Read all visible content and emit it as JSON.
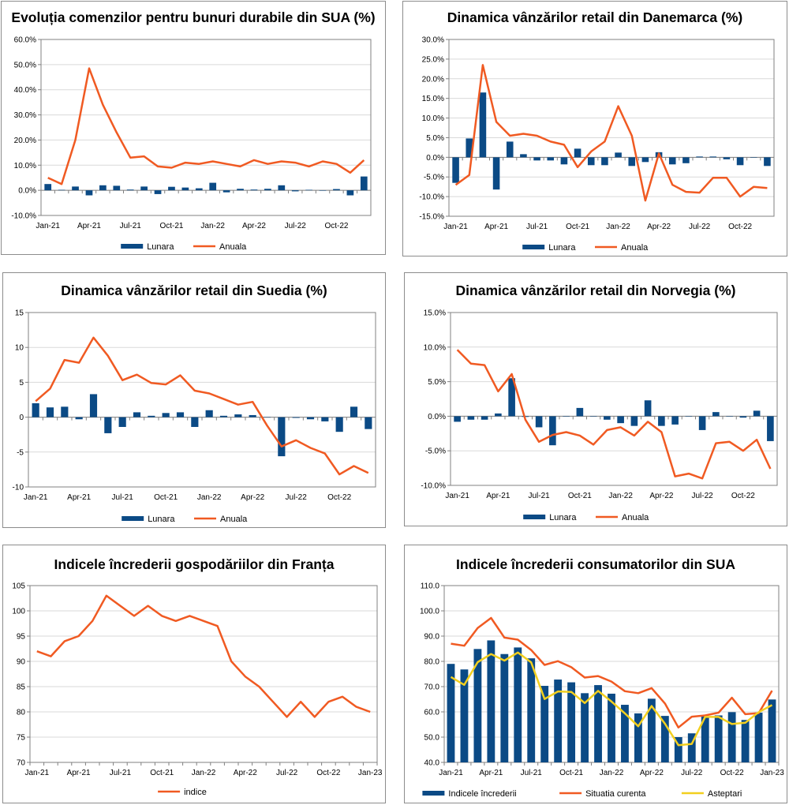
{
  "colors": {
    "bar": "#0b4a85",
    "line": "#f05a22",
    "line2": "#f2cf1f",
    "grid": "#d9d9d9",
    "axis": "#808080"
  },
  "chart_data": [
    {
      "id": "c1",
      "type": "bar+line",
      "title": "Evoluția comenzilor pentru bunuri durabile din SUA (%)",
      "categories": [
        "Jan-21",
        "Feb-21",
        "Mar-21",
        "Apr-21",
        "May-21",
        "Jun-21",
        "Jul-21",
        "Aug-21",
        "Sep-21",
        "Oct-21",
        "Nov-21",
        "Dec-21",
        "Jan-22",
        "Feb-22",
        "Mar-22",
        "Apr-22",
        "May-22",
        "Jun-22",
        "Jul-22",
        "Aug-22",
        "Sep-22",
        "Oct-22",
        "Nov-22",
        "Dec-22"
      ],
      "xtick_labels": [
        "Jan-21",
        "",
        "",
        "Apr-21",
        "",
        "",
        "Jul-21",
        "",
        "",
        "Oct-21",
        "",
        "",
        "Jan-22",
        "",
        "",
        "Apr-22",
        "",
        "",
        "Jul-22",
        "",
        "",
        "Oct-22",
        "",
        ""
      ],
      "ylim": [
        -10,
        60
      ],
      "yticks": [
        -10,
        0,
        10,
        20,
        30,
        40,
        50,
        60
      ],
      "ytick_labels": [
        "-10.0%",
        "0.0%",
        "10.0%",
        "20.0%",
        "30.0%",
        "40.0%",
        "50.0%",
        "60.0%"
      ],
      "series": [
        {
          "name": "Lunara",
          "kind": "bar",
          "values": [
            2.5,
            0.2,
            1.5,
            -2,
            2,
            1.8,
            0.3,
            1.5,
            -1.5,
            1.4,
            1.1,
            0.8,
            3,
            -0.8,
            0.6,
            0.3,
            0.6,
            2,
            -0.4,
            0.2,
            0,
            0.5,
            -2,
            5.5
          ]
        },
        {
          "name": "Anuala",
          "kind": "line",
          "values": [
            5,
            2.5,
            20,
            48.5,
            34,
            23,
            13,
            13.5,
            9.5,
            9,
            11,
            10.5,
            11.5,
            10.5,
            9.5,
            12,
            10.5,
            11.5,
            11,
            9.5,
            11.5,
            10.5,
            7,
            12
          ]
        }
      ]
    },
    {
      "id": "c2",
      "type": "bar+line",
      "title": "Dinamica vânzărilor retail din Danemarca (%)",
      "categories": [
        "Jan-21",
        "Feb-21",
        "Mar-21",
        "Apr-21",
        "May-21",
        "Jun-21",
        "Jul-21",
        "Aug-21",
        "Sep-21",
        "Oct-21",
        "Nov-21",
        "Dec-21",
        "Jan-22",
        "Feb-22",
        "Mar-22",
        "Apr-22",
        "May-22",
        "Jun-22",
        "Jul-22",
        "Aug-22",
        "Sep-22",
        "Oct-22",
        "Nov-22",
        "Dec-22"
      ],
      "xtick_labels": [
        "Jan-21",
        "",
        "",
        "Apr-21",
        "",
        "",
        "Jul-21",
        "",
        "",
        "Oct-21",
        "",
        "",
        "Jan-22",
        "",
        "",
        "Apr-22",
        "",
        "",
        "Jul-22",
        "",
        "",
        "Oct-22",
        "",
        ""
      ],
      "ylim": [
        -15,
        30
      ],
      "yticks": [
        -15,
        -10,
        -5,
        0,
        5,
        10,
        15,
        20,
        25,
        30
      ],
      "ytick_labels": [
        "-15.0%",
        "-10.0%",
        "-5.0%",
        "0.0%",
        "5.0%",
        "10.0%",
        "15.0%",
        "20.0%",
        "25.0%",
        "30.0%"
      ],
      "series": [
        {
          "name": "Lunara",
          "kind": "bar",
          "values": [
            -6.5,
            4.8,
            16.5,
            -8.2,
            4,
            0.8,
            -0.8,
            -0.8,
            -1.8,
            2.2,
            -2,
            -2,
            1.2,
            -2.2,
            -1.2,
            1.3,
            -1.8,
            -1.5,
            0.2,
            0.2,
            -0.5,
            -2,
            0,
            -2.2
          ]
        },
        {
          "name": "Anuala",
          "kind": "line",
          "values": [
            -7,
            -4.5,
            23.5,
            9,
            5.5,
            6,
            5.5,
            4,
            3.2,
            -2.5,
            1.5,
            4,
            13,
            5.5,
            -11,
            1,
            -7,
            -8.8,
            -9,
            -5.2,
            -5.2,
            -10,
            -7.5,
            -7.8
          ]
        }
      ]
    },
    {
      "id": "c3",
      "type": "bar+line",
      "title": "Dinamica vânzărilor retail din Suedia (%)",
      "categories": [
        "Jan-21",
        "Feb-21",
        "Mar-21",
        "Apr-21",
        "May-21",
        "Jun-21",
        "Jul-21",
        "Aug-21",
        "Sep-21",
        "Oct-21",
        "Nov-21",
        "Dec-21",
        "Jan-22",
        "Feb-22",
        "Mar-22",
        "Apr-22",
        "May-22",
        "Jun-22",
        "Jul-22",
        "Aug-22",
        "Sep-22",
        "Oct-22",
        "Nov-22",
        "Dec-22"
      ],
      "xtick_labels": [
        "Jan-21",
        "",
        "",
        "Apr-21",
        "",
        "",
        "Jul-21",
        "",
        "",
        "Oct-21",
        "",
        "",
        "Jan-22",
        "",
        "",
        "Apr-22",
        "",
        "",
        "Jul-22",
        "",
        "",
        "Oct-22",
        "",
        ""
      ],
      "ylim": [
        -10,
        15
      ],
      "yticks": [
        -10,
        -5,
        0,
        5,
        10,
        15
      ],
      "ytick_labels": [
        "-10",
        "-5",
        "0",
        "5",
        "10",
        "15"
      ],
      "series": [
        {
          "name": "Lunara",
          "kind": "bar",
          "values": [
            2,
            1.4,
            1.5,
            -0.3,
            3.3,
            -2.3,
            -1.4,
            0.7,
            0.2,
            0.6,
            0.7,
            -1.4,
            1,
            0.2,
            0.4,
            0.3,
            0,
            -5.6,
            -0.1,
            -0.3,
            -0.6,
            -2.1,
            1.5,
            -1.7
          ]
        },
        {
          "name": "Anuala",
          "kind": "line",
          "values": [
            2.3,
            4.1,
            8.2,
            7.8,
            11.4,
            8.8,
            5.3,
            6.1,
            4.9,
            4.7,
            6,
            3.8,
            3.4,
            2.6,
            1.8,
            2.2,
            -1.2,
            -4.2,
            -3.3,
            -4.4,
            -5.2,
            -8.2,
            -7,
            -8
          ]
        }
      ]
    },
    {
      "id": "c4",
      "type": "bar+line",
      "title": "Dinamica vânzărilor retail din Norvegia (%)",
      "categories": [
        "Jan-21",
        "Feb-21",
        "Mar-21",
        "Apr-21",
        "May-21",
        "Jun-21",
        "Jul-21",
        "Aug-21",
        "Sep-21",
        "Oct-21",
        "Nov-21",
        "Dec-21",
        "Jan-22",
        "Feb-22",
        "Mar-22",
        "Apr-22",
        "May-22",
        "Jun-22",
        "Jul-22",
        "Aug-22",
        "Sep-22",
        "Oct-22",
        "Nov-22",
        "Dec-22"
      ],
      "xtick_labels": [
        "Jan-21",
        "",
        "",
        "Apr-21",
        "",
        "",
        "Jul-21",
        "",
        "",
        "Oct-21",
        "",
        "",
        "Jan-22",
        "",
        "",
        "Apr-22",
        "",
        "",
        "Jul-22",
        "",
        "",
        "Oct-22",
        "",
        ""
      ],
      "ylim": [
        -10,
        15
      ],
      "yticks": [
        -10,
        -5,
        0,
        5,
        10,
        15
      ],
      "ytick_labels": [
        "-10.0%",
        "-5.0%",
        "0.0%",
        "5.0%",
        "10.0%",
        "15.0%"
      ],
      "series": [
        {
          "name": "Lunara",
          "kind": "bar",
          "values": [
            -0.8,
            -0.5,
            -0.5,
            0.4,
            5.5,
            -0.1,
            -1.6,
            -4.2,
            0,
            1.2,
            0,
            -0.5,
            -1,
            -1.4,
            2.3,
            -1.4,
            -1.2,
            0,
            -2,
            0.6,
            0,
            -0.2,
            0.8,
            -3.6
          ]
        },
        {
          "name": "Anuala",
          "kind": "line",
          "values": [
            9.6,
            7.6,
            7.4,
            3.6,
            6.1,
            -0.5,
            -3.7,
            -2.7,
            -2.3,
            -2.8,
            -4.1,
            -2,
            -1.6,
            -2.8,
            -0.8,
            -2.3,
            -8.7,
            -8.3,
            -9,
            -3.9,
            -3.7,
            -5,
            -3.4,
            -7.6
          ]
        }
      ]
    },
    {
      "id": "c5",
      "type": "line",
      "title": "Indicele încrederii gospodăriilor din Franța",
      "categories": [
        "Jan-21",
        "Feb-21",
        "Mar-21",
        "Apr-21",
        "May-21",
        "Jun-21",
        "Jul-21",
        "Aug-21",
        "Sep-21",
        "Oct-21",
        "Nov-21",
        "Dec-21",
        "Jan-22",
        "Feb-22",
        "Mar-22",
        "Apr-22",
        "May-22",
        "Jun-22",
        "Jul-22",
        "Aug-22",
        "Sep-22",
        "Oct-22",
        "Nov-22",
        "Dec-22",
        "Jan-23"
      ],
      "xtick_labels": [
        "Jan-21",
        "",
        "",
        "Apr-21",
        "",
        "",
        "Jul-21",
        "",
        "",
        "Oct-21",
        "",
        "",
        "Jan-22",
        "",
        "",
        "Apr-22",
        "",
        "",
        "Jul-22",
        "",
        "",
        "Oct-22",
        "",
        "",
        "Jan-23"
      ],
      "ylim": [
        70,
        105
      ],
      "yticks": [
        70,
        75,
        80,
        85,
        90,
        95,
        100,
        105
      ],
      "ytick_labels": [
        "70",
        "75",
        "80",
        "85",
        "90",
        "95",
        "100",
        "105"
      ],
      "series": [
        {
          "name": "indice",
          "kind": "line",
          "values": [
            92,
            91,
            94,
            95,
            98,
            103,
            101,
            99,
            101,
            99,
            98,
            99,
            98,
            97,
            90,
            87,
            85,
            82,
            79,
            82,
            79,
            82,
            83,
            81,
            80
          ]
        }
      ]
    },
    {
      "id": "c6",
      "type": "bar+line",
      "title": "Indicele încrederii consumatorilor din SUA",
      "categories": [
        "Jan-21",
        "Feb-21",
        "Mar-21",
        "Apr-21",
        "May-21",
        "Jun-21",
        "Jul-21",
        "Aug-21",
        "Sep-21",
        "Oct-21",
        "Nov-21",
        "Dec-21",
        "Jan-22",
        "Feb-22",
        "Mar-22",
        "Apr-22",
        "May-22",
        "Jun-22",
        "Jul-22",
        "Aug-22",
        "Sep-22",
        "Oct-22",
        "Nov-22",
        "Dec-22",
        "Jan-23"
      ],
      "xtick_labels": [
        "Jan-21",
        "",
        "",
        "Apr-21",
        "",
        "",
        "Jul-21",
        "",
        "",
        "Oct-21",
        "",
        "",
        "Jan-22",
        "",
        "",
        "Apr-22",
        "",
        "",
        "Jul-22",
        "",
        "",
        "Oct-22",
        "",
        "",
        "Jan-23"
      ],
      "ylim": [
        40,
        110
      ],
      "yticks": [
        40,
        50,
        60,
        70,
        80,
        90,
        100,
        110
      ],
      "ytick_labels": [
        "40.0",
        "50.0",
        "60.0",
        "70.0",
        "80.0",
        "90.0",
        "100.0",
        "110.0"
      ],
      "series": [
        {
          "name": "Indicele încrederii",
          "kind": "bar",
          "values": [
            79,
            76.8,
            84.9,
            88.3,
            82.9,
            85.5,
            81.2,
            70.3,
            72.8,
            71.7,
            67.4,
            70.6,
            67.2,
            62.8,
            59.4,
            65.2,
            58.4,
            50,
            51.5,
            58.2,
            58.6,
            59.9,
            56.8,
            59.7,
            64.9
          ]
        },
        {
          "name": "Situatia curenta",
          "kind": "line",
          "values": [
            87,
            86.2,
            93.2,
            97.2,
            89.4,
            88.6,
            84.5,
            78.6,
            80.1,
            77.7,
            73.6,
            74.2,
            72,
            68.2,
            67.4,
            69.4,
            63.3,
            53.8,
            58.1,
            58.6,
            59.7,
            65.6,
            59.1,
            59.5,
            68.4
          ]
        },
        {
          "name": "Asteptari",
          "kind": "line",
          "values": [
            73.8,
            70.7,
            79.7,
            82.9,
            80.3,
            83.5,
            79.6,
            65.1,
            68.1,
            67.9,
            63.5,
            68.3,
            64.1,
            59.4,
            54.3,
            62.3,
            55.3,
            46.8,
            47.3,
            58,
            58,
            55.2,
            55.7,
            59.9,
            62.7
          ]
        }
      ]
    }
  ]
}
